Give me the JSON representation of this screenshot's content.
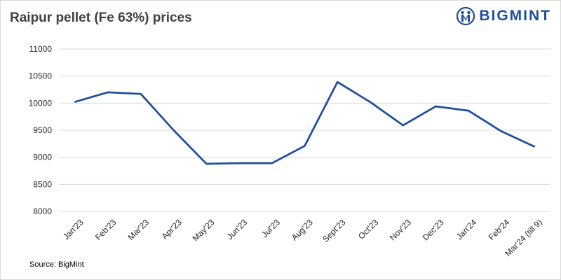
{
  "title": "Raipur pellet (Fe 63%) prices",
  "brand": {
    "name": "BIGMINT",
    "color": "#1f4e9c"
  },
  "source": "Source: BigMint",
  "chart_data": {
    "type": "line",
    "title": "Raipur pellet (Fe 63%) prices",
    "categories": [
      "Jan'23",
      "Feb'23",
      "Mar'23",
      "Apr'23",
      "May'23",
      "Jun'23",
      "Jul'23",
      "Aug'23",
      "Sept'23",
      "Oct'23",
      "Nov'23",
      "Dec'23",
      "Jan'24",
      "Feb'24",
      "Mar'24 (till 9)"
    ],
    "series": [
      {
        "values": [
          10025,
          10200,
          10170,
          9500,
          8880,
          8890,
          8890,
          9210,
          10390,
          10020,
          9590,
          9940,
          9860,
          9480,
          9200
        ],
        "color": "#1f4e9c"
      }
    ],
    "ylim": [
      8000,
      11000
    ],
    "yticks": [
      8000,
      8500,
      9000,
      9500,
      10000,
      10500,
      11000
    ],
    "grid": true,
    "legend": "none",
    "xlabel": "",
    "ylabel": ""
  }
}
